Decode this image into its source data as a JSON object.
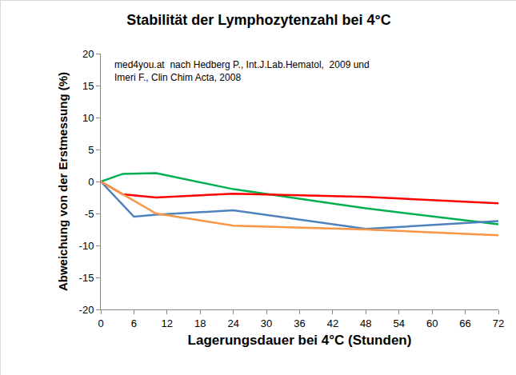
{
  "chart_data": {
    "type": "line",
    "title": "Stabilität der Lymphozytenzahl bei 4°C",
    "x_label": "Lagerungsdauer bei 4°C (Stunden)",
    "y_label": "Abweichung von der Erstmessung (%)",
    "annotations": [
      "med4you.at  nach Hedberg P., Int.J.Lab.Hematol,  2009 und",
      "Imeri F., Clin Chim Acta, 2008"
    ],
    "xlim": [
      0,
      72
    ],
    "xticks": [
      0,
      6,
      12,
      18,
      24,
      30,
      36,
      42,
      48,
      54,
      60,
      66,
      72
    ],
    "ylim": [
      -20,
      20
    ],
    "yticks": [
      -20,
      -15,
      -10,
      -5,
      0,
      5,
      10,
      15,
      20
    ],
    "grid": false,
    "series": [
      {
        "color": "#00b050",
        "x": [
          0,
          4,
          10,
          24,
          48,
          72
        ],
        "values": [
          0,
          1.2,
          1.3,
          -1.2,
          -4.2,
          -6.7
        ]
      },
      {
        "color": "#ff0000",
        "x": [
          0,
          4,
          10,
          24,
          48,
          72
        ],
        "values": [
          0,
          -2.0,
          -2.5,
          -1.9,
          -2.4,
          -3.4
        ]
      },
      {
        "color": "#4f81bd",
        "x": [
          0,
          6,
          10,
          24,
          48,
          72
        ],
        "values": [
          0,
          -5.5,
          -5.2,
          -4.5,
          -7.4,
          -6.2
        ]
      },
      {
        "color": "#f79646",
        "x": [
          0,
          4,
          10,
          24,
          48,
          72
        ],
        "values": [
          0,
          -2.0,
          -5.0,
          -6.9,
          -7.5,
          -8.4
        ]
      }
    ]
  }
}
